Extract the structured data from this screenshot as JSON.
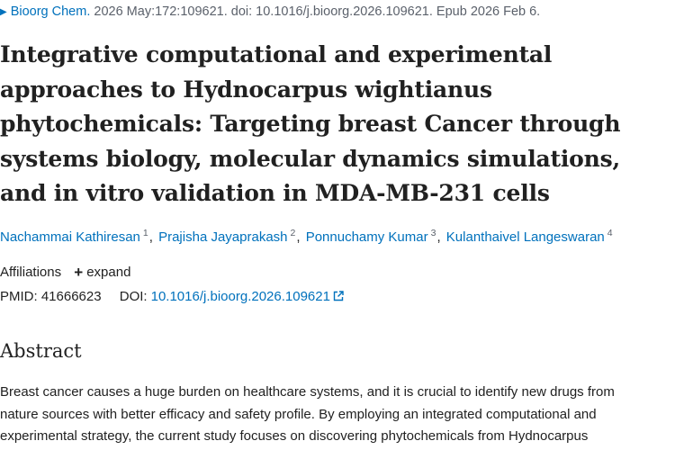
{
  "citation": {
    "journal": "Bioorg Chem.",
    "details": "2026 May:172:109621. doi: 10.1016/j.bioorg.2026.109621. Epub 2026 Feb 6."
  },
  "article": {
    "title_lines": [
      "Integrative computational and experimental",
      "approaches to Hydnocarpus wightianus",
      "phytochemicals: Targeting breast Cancer through",
      "systems biology, molecular dynamics simulations,",
      "and in vitro validation in MDA-MB-231 cells"
    ]
  },
  "authors": [
    {
      "name": "Nachammai Kathiresan",
      "aff": "1"
    },
    {
      "name": "Prajisha Jayaprakash",
      "aff": "2"
    },
    {
      "name": "Ponnuchamy Kumar",
      "aff": "3"
    },
    {
      "name": "Kulanthaivel Langeswaran",
      "aff": "4"
    }
  ],
  "affiliations": {
    "label": "Affiliations",
    "expand_label": "expand"
  },
  "identifiers": {
    "pmid_label": "PMID:",
    "pmid": "41666623",
    "doi_label": "DOI:",
    "doi": "10.1016/j.bioorg.2026.109621"
  },
  "abstract": {
    "heading": "Abstract",
    "lines": [
      "Breast cancer causes a huge burden on healthcare systems, and it is crucial to identify new drugs from",
      "nature sources with better efficacy and safety profile. By employing an integrated computational and",
      "experimental strategy, the current study focuses on discovering phytochemicals from Hydnocarpus"
    ]
  },
  "icons": {
    "citation_marker": "triangle-right-icon",
    "expand": "plus-icon",
    "doi_link": "external-link-icon"
  },
  "colors": {
    "link": "#0071bc",
    "text": "#212121",
    "muted": "#5b616b"
  }
}
